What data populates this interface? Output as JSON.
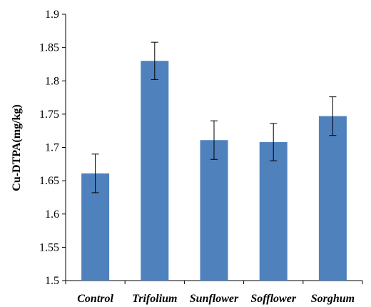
{
  "chart_data": {
    "type": "bar",
    "categories": [
      "Control",
      "Trifolium",
      "Sunflower",
      "Sofflower",
      "Sorghum"
    ],
    "values": [
      1.661,
      1.83,
      1.711,
      1.708,
      1.747
    ],
    "error": [
      0.029,
      0.028,
      0.029,
      0.028,
      0.029
    ],
    "ylabel": "Cu-DTPA(mg/kg)",
    "ylim": [
      1.5,
      1.9
    ],
    "yticks": [
      "1.5",
      "1.55",
      "1.6",
      "1.65",
      "1.7",
      "1.75",
      "1.8",
      "1.85",
      "1.9"
    ],
    "grid": false,
    "legend": "none",
    "bar_color": "#4f81bd"
  }
}
